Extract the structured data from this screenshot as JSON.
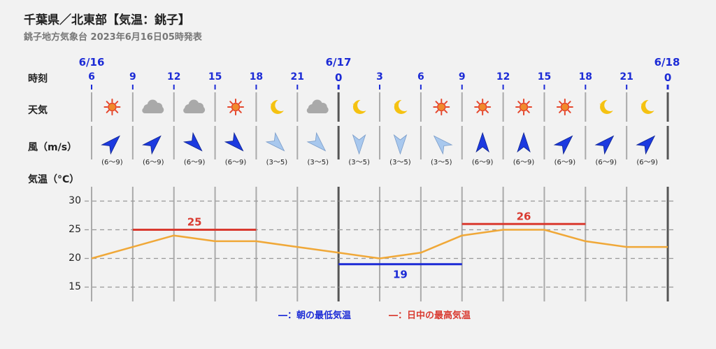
{
  "header": {
    "title": "千葉県／北東部【気温：銚子】",
    "subtitle": "銚子地方気象台 2023年6月16日05時発表"
  },
  "labels": {
    "time": "時刻",
    "weather": "天気",
    "wind": "風（m/s）",
    "temp": "気温（°C）"
  },
  "dates": [
    "6/16",
    "6/17",
    "6/18"
  ],
  "hours": [
    "6",
    "9",
    "12",
    "15",
    "18",
    "21",
    "0",
    "3",
    "6",
    "9",
    "12",
    "15",
    "18",
    "21",
    "0"
  ],
  "weather_icons": [
    "sun-icon",
    "cloud-icon",
    "cloud-icon",
    "sun-icon",
    "moon-icon",
    "cloud-icon",
    "moon-icon",
    "moon-icon",
    "sun-icon",
    "sun-icon",
    "sun-icon",
    "sun-icon",
    "moon-icon",
    "moon-icon"
  ],
  "wind": [
    {
      "dir": "NE",
      "speed": "(6〜9)",
      "strong": true
    },
    {
      "dir": "NE",
      "speed": "(6〜9)",
      "strong": true
    },
    {
      "dir": "SE",
      "speed": "(6〜9)",
      "strong": true
    },
    {
      "dir": "SE",
      "speed": "(6〜9)",
      "strong": true
    },
    {
      "dir": "SE",
      "speed": "(3〜5)",
      "strong": false
    },
    {
      "dir": "SE",
      "speed": "(3〜5)",
      "strong": false
    },
    {
      "dir": "S",
      "speed": "(3〜5)",
      "strong": false
    },
    {
      "dir": "S",
      "speed": "(3〜5)",
      "strong": false
    },
    {
      "dir": "NW",
      "speed": "(3〜5)",
      "strong": false
    },
    {
      "dir": "N",
      "speed": "(6〜9)",
      "strong": true
    },
    {
      "dir": "N",
      "speed": "(6〜9)",
      "strong": true
    },
    {
      "dir": "NE",
      "speed": "(6〜9)",
      "strong": true
    },
    {
      "dir": "NE",
      "speed": "(6〜9)",
      "strong": true
    },
    {
      "dir": "NE",
      "speed": "(6〜9)",
      "strong": true
    }
  ],
  "chart_data": {
    "type": "line",
    "x": [
      "6/16 6",
      "9",
      "12",
      "15",
      "18",
      "21",
      "6/17 0",
      "3",
      "6",
      "9",
      "12",
      "15",
      "18",
      "21",
      "6/18 0"
    ],
    "series": [
      {
        "values": [
          20,
          22,
          24,
          23,
          23,
          22,
          21,
          20,
          21,
          24,
          25,
          25,
          23,
          22,
          22
        ]
      }
    ],
    "yticks": [
      "30",
      "25",
      "20",
      "15"
    ],
    "ylim": [
      12.5,
      32.5
    ],
    "min_temp": {
      "value": 19,
      "label": "19",
      "from_index": 6,
      "to_index": 9
    },
    "max_temp": [
      {
        "value": 25,
        "label": "25",
        "from_index": 1,
        "to_index": 4
      },
      {
        "value": 26,
        "label": "26",
        "from_index": 9,
        "to_index": 12
      }
    ],
    "colors": {
      "line": "#f0a838",
      "min": "#1c2bd6",
      "max": "#d93a30",
      "grid": "#999999"
    }
  },
  "legend": {
    "min_label": "―：朝の最低気温",
    "max_label": "―：日中の最高気温"
  }
}
